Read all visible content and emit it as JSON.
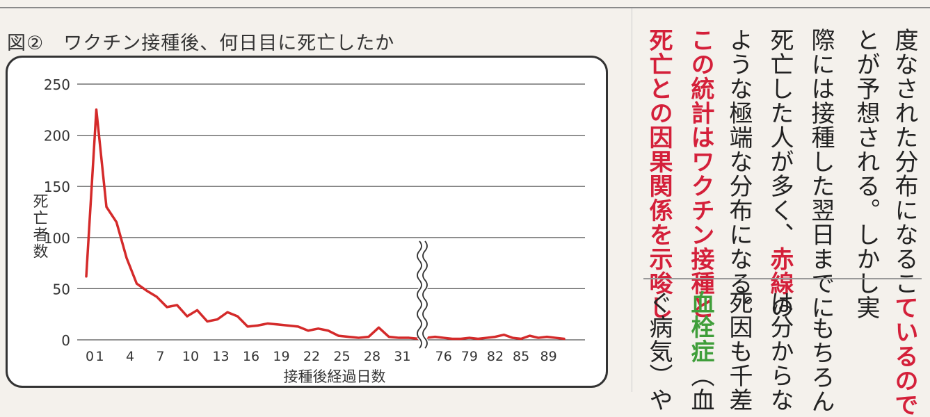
{
  "figure": {
    "title": "図②　ワクチン接種後、何日目に死亡したか"
  },
  "chart_data": {
    "type": "line",
    "title": "",
    "xlabel": "接種後経過日数",
    "ylabel": "死亡者数",
    "ylim": [
      0,
      250
    ],
    "yticks": [
      "0",
      "50",
      "100",
      "150",
      "200",
      "250"
    ],
    "xticks_left": [
      "0",
      "1",
      "4",
      "7",
      "10",
      "13",
      "16",
      "19",
      "22",
      "25",
      "28",
      "31"
    ],
    "xticks_right": [
      "76",
      "79",
      "82",
      "85",
      "89"
    ],
    "axis_break": true,
    "grid": true,
    "line_color": "#d42a2a",
    "series": [
      {
        "segments": [
          {
            "x": [
              0,
              1,
              2,
              3,
              4,
              5,
              6,
              7,
              8,
              9,
              10,
              11,
              12,
              13,
              14,
              15,
              16,
              17,
              18,
              19,
              20,
              21,
              22,
              23,
              24,
              25,
              26,
              27,
              28,
              29,
              30,
              31,
              32,
              33
            ],
            "y": [
              62,
              225,
              130,
              115,
              80,
              55,
              48,
              42,
              32,
              34,
              23,
              29,
              18,
              20,
              27,
              23,
              13,
              14,
              16,
              15,
              14,
              13,
              9,
              11,
              9,
              4,
              3,
              2,
              3,
              12,
              3,
              2,
              2,
              1
            ]
          },
          {
            "x": [
              74,
              75,
              76,
              77,
              78,
              79,
              80,
              81,
              82,
              83,
              84,
              85,
              86,
              87,
              88,
              89,
              90
            ],
            "y": [
              2,
              3,
              2,
              1,
              1,
              2,
              1,
              2,
              3,
              5,
              2,
              1,
              4,
              2,
              3,
              2,
              1
            ]
          }
        ]
      }
    ]
  },
  "text_columns": {
    "col1": "度なされた分布になるこ",
    "col2": "とが予想される。しかし実",
    "col3": "際には接種した翌日までに",
    "col4_a": "死亡した人が多く、",
    "col4_b": "赤線",
    "col4_c": "の",
    "col5": "ような極端な分布になる。",
    "col6": "この統計はワクチン接種と",
    "col7": "死亡との因果関係を示唆し",
    "b_col1": "ているので",
    "b_col2": "もちろん",
    "b_col3": "は分からな",
    "b_col4": "死因も千差",
    "b_col5_a": "血栓症",
    "b_col5_b": "（血",
    "b_col6": "ぐ病気）や"
  }
}
